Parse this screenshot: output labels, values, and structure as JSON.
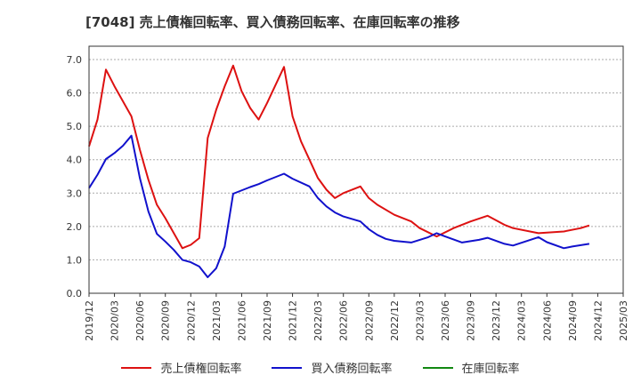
{
  "chart_data": {
    "type": "line",
    "title": "[7048]  売上債権回転率、買入債務回転率、在庫回転率の推移",
    "xlabel": "",
    "ylabel": "",
    "ylim": [
      0,
      7.4
    ],
    "yticks": [
      "0.0",
      "1.0",
      "2.0",
      "3.0",
      "4.0",
      "5.0",
      "6.0",
      "7.0"
    ],
    "xticks": [
      "2019/12",
      "2020/03",
      "2020/06",
      "2020/09",
      "2020/12",
      "2021/03",
      "2021/06",
      "2021/09",
      "2021/12",
      "2022/03",
      "2022/06",
      "2022/09",
      "2022/12",
      "2023/03",
      "2023/06",
      "2023/09",
      "2023/12",
      "2024/03",
      "2024/06",
      "2024/09",
      "2024/12",
      "2025/03"
    ],
    "x_months": [
      0,
      1,
      2,
      3,
      4,
      5,
      6,
      7,
      8,
      9,
      10,
      11,
      12,
      13,
      14,
      15,
      16,
      17,
      18,
      19,
      20,
      21,
      22,
      23,
      24,
      25,
      26,
      27,
      28,
      29,
      30,
      31,
      32,
      33,
      34,
      35,
      36,
      37,
      38,
      39,
      40,
      41,
      42,
      43,
      44,
      45,
      46,
      47,
      48,
      49,
      50,
      51,
      52,
      53,
      54,
      55,
      56,
      57,
      58,
      59,
      60
    ],
    "series": [
      {
        "name": "売上債権回転率",
        "color": "#dd1111",
        "points": [
          [
            0,
            4.4
          ],
          [
            1,
            5.2
          ],
          [
            2,
            6.7
          ],
          [
            3,
            6.2
          ],
          [
            5,
            5.3
          ],
          [
            6,
            4.3
          ],
          [
            7,
            3.4
          ],
          [
            8,
            2.65
          ],
          [
            9,
            2.25
          ],
          [
            11,
            1.35
          ],
          [
            12,
            1.45
          ],
          [
            13,
            1.65
          ],
          [
            14,
            4.65
          ],
          [
            15,
            5.5
          ],
          [
            16,
            6.2
          ],
          [
            17,
            6.82
          ],
          [
            18,
            6.05
          ],
          [
            19,
            5.55
          ],
          [
            20,
            5.2
          ],
          [
            21,
            5.7
          ],
          [
            23,
            6.78
          ],
          [
            24,
            5.3
          ],
          [
            25,
            4.55
          ],
          [
            26,
            4.0
          ],
          [
            27,
            3.45
          ],
          [
            28,
            3.1
          ],
          [
            29,
            2.85
          ],
          [
            30,
            3.0
          ],
          [
            32,
            3.2
          ],
          [
            33,
            2.85
          ],
          [
            34,
            2.65
          ],
          [
            36,
            2.35
          ],
          [
            38,
            2.15
          ],
          [
            39,
            1.95
          ],
          [
            41,
            1.7
          ],
          [
            43,
            1.95
          ],
          [
            45,
            2.15
          ],
          [
            47,
            2.32
          ],
          [
            49,
            2.05
          ],
          [
            50,
            1.95
          ],
          [
            53,
            1.8
          ],
          [
            56,
            1.85
          ],
          [
            58,
            1.95
          ],
          [
            59,
            2.03
          ]
        ]
      },
      {
        "name": "買入債務回転率",
        "color": "#1111cc",
        "points": [
          [
            0,
            3.15
          ],
          [
            1,
            3.55
          ],
          [
            2,
            4.02
          ],
          [
            3,
            4.2
          ],
          [
            4,
            4.42
          ],
          [
            5,
            4.72
          ],
          [
            6,
            3.45
          ],
          [
            7,
            2.45
          ],
          [
            8,
            1.78
          ],
          [
            9,
            1.55
          ],
          [
            10,
            1.3
          ],
          [
            11,
            1.0
          ],
          [
            12,
            0.93
          ],
          [
            13,
            0.8
          ],
          [
            14,
            0.48
          ],
          [
            15,
            0.75
          ],
          [
            16,
            1.4
          ],
          [
            17,
            2.98
          ],
          [
            19,
            3.18
          ],
          [
            20,
            3.27
          ],
          [
            21,
            3.38
          ],
          [
            23,
            3.58
          ],
          [
            24,
            3.43
          ],
          [
            26,
            3.2
          ],
          [
            27,
            2.85
          ],
          [
            28,
            2.6
          ],
          [
            29,
            2.42
          ],
          [
            30,
            2.3
          ],
          [
            32,
            2.15
          ],
          [
            33,
            1.92
          ],
          [
            34,
            1.75
          ],
          [
            35,
            1.63
          ],
          [
            36,
            1.57
          ],
          [
            38,
            1.52
          ],
          [
            40,
            1.68
          ],
          [
            41,
            1.8
          ],
          [
            42,
            1.7
          ],
          [
            44,
            1.52
          ],
          [
            46,
            1.6
          ],
          [
            47,
            1.66
          ],
          [
            49,
            1.48
          ],
          [
            50,
            1.43
          ],
          [
            53,
            1.68
          ],
          [
            54,
            1.53
          ],
          [
            56,
            1.35
          ],
          [
            57,
            1.4
          ],
          [
            59,
            1.48
          ]
        ]
      },
      {
        "name": "在庫回転率",
        "color": "#118811",
        "points": []
      }
    ],
    "legend_position": "bottom",
    "grid": "y-dashed"
  }
}
